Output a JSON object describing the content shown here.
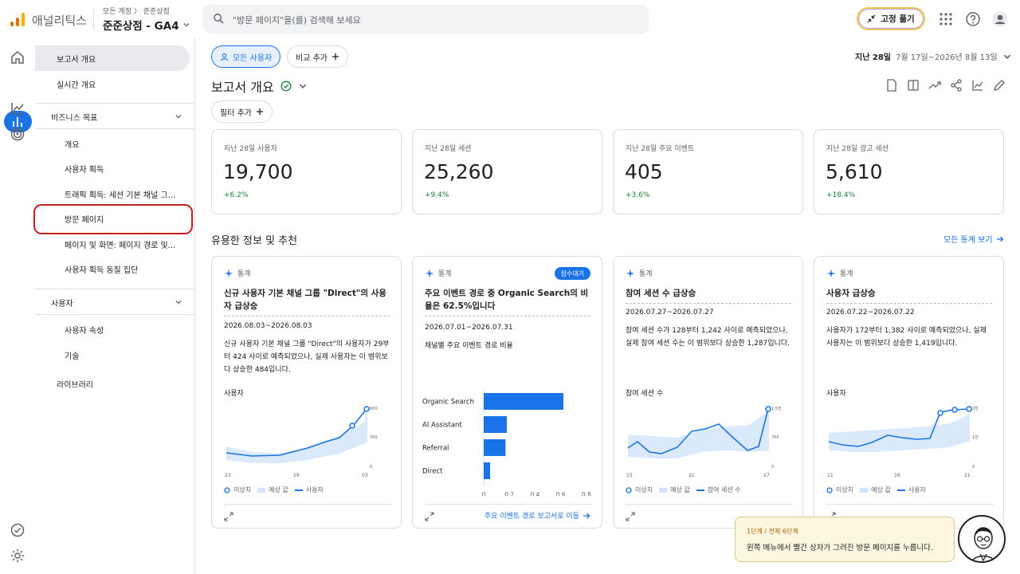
{
  "app": {
    "brand": "애널리틱스",
    "breadcrumb": "모든 계정 〉 준준상점",
    "property": "준준상점 - GA4",
    "search_placeholder": "\"방문 페이지\"을(를) 검색해 보세요",
    "unpin_label": "고정 풀기"
  },
  "sidebar": {
    "items": [
      {
        "label": "보고서 개요"
      },
      {
        "label": "실시간 개요"
      }
    ],
    "section_business": "비즈니스 목표",
    "business_items": [
      "개요",
      "사용자 획득",
      "트래픽 획득: 세션 기본 채널 그...",
      "방문 페이지",
      "페이지 및 화면: 페이지 경로 및...",
      "사용자 획득 동질 집단"
    ],
    "section_user": "사용자",
    "user_items": [
      "사용자 속성",
      "기술"
    ],
    "library": "라이브러리"
  },
  "toolbar": {
    "segment": "모든 사용자",
    "compare": "비교 추가",
    "date_prefix": "지난 28일",
    "date_range": "7월 17일~2026년 8월 13일",
    "page_title": "보고서 개요",
    "filter": "필터 추가"
  },
  "kpis": [
    {
      "label": "지난 28일 사용자",
      "value": "19,700",
      "delta": "+6.2%"
    },
    {
      "label": "지난 28일 세션",
      "value": "25,260",
      "delta": "+9.4%"
    },
    {
      "label": "지난 28일 주요 이벤트",
      "value": "405",
      "delta": "+3.6%"
    },
    {
      "label": "지난 28일 광고 세션",
      "value": "5,610",
      "delta": "+18.4%"
    }
  ],
  "insights": {
    "section_title": "유용한 정보 및 추천",
    "see_all": "모든 통계 보기",
    "tag": "통계",
    "legend_anomaly": "이상치",
    "legend_expected": "예상 값",
    "cards": [
      {
        "title": "신규 사용자 기본 채널 그룹 \"Direct\"의 사용자 급상승",
        "date": "2026.08.03~2026.08.03",
        "desc": "신규 사용자 기본 채널 그룹 \"Direct\"의 사용자가 29부터 424 사이로 예측되었으나, 실제 사용자는 이 범위보다 상승한 484입니다.",
        "metric": "사용자",
        "xticks": [
          "23",
          "29",
          "03"
        ],
        "yticks": [
          "600",
          "300",
          "0"
        ],
        "legend_series": "사용자"
      },
      {
        "badge": "접수대기",
        "title": "주요 이벤트 경로 중 Organic Search의 비율은 62.5%입니다",
        "date": "2026.07.01~2026.07.31",
        "desc": "채널별 주요 이벤트 경로 비율",
        "link": "주요 이벤트 경로 보고서로 이동"
      },
      {
        "title": "참여 세션 수 급상승",
        "date": "2026.07.27~2026.07.27",
        "desc": "참여 세션 수가 128부터 1,242 사이로 예측되었으나, 실제 참여 세션 수는 이 범위보다 상승한 1,287입니다.",
        "metric": "참여 세션 수",
        "xticks": [
          "15",
          "21",
          "27"
        ],
        "yticks": [
          "1.5천",
          "750",
          "0"
        ],
        "legend_series": "참여 세션 수"
      },
      {
        "title": "사용자 급상승",
        "date": "2026.07.22~2026.07.22",
        "desc": "사용자가 172부터 1,382 사이로 예측되었으나, 실제 사용자는 이 범위보다 상승한 1,419입니다.",
        "metric": "사용자",
        "xticks": [
          "11",
          "16",
          "21"
        ],
        "yticks": [
          "2천",
          "1천",
          "0"
        ],
        "legend_series": "사용자"
      }
    ]
  },
  "chart_data": {
    "type": "bar",
    "orientation": "horizontal",
    "categories": [
      "Organic Search",
      "AI Assistant",
      "Referral",
      "Direct"
    ],
    "values": [
      0.62,
      0.18,
      0.17,
      0.05
    ],
    "xticks": [
      "0",
      "0.2",
      "0.4",
      "0.6",
      "0.8"
    ],
    "xlim": [
      0,
      0.8
    ],
    "color": "#1a73e8"
  },
  "tour": {
    "step": "1단계 / 전체 6단계",
    "message": "왼쪽 메뉴에서 빨간 상자가 그려진 방문 페이지를 누릅니다."
  },
  "colors": {
    "accent": "#1a73e8",
    "positive": "#188038",
    "highlight": "#c5221f"
  }
}
